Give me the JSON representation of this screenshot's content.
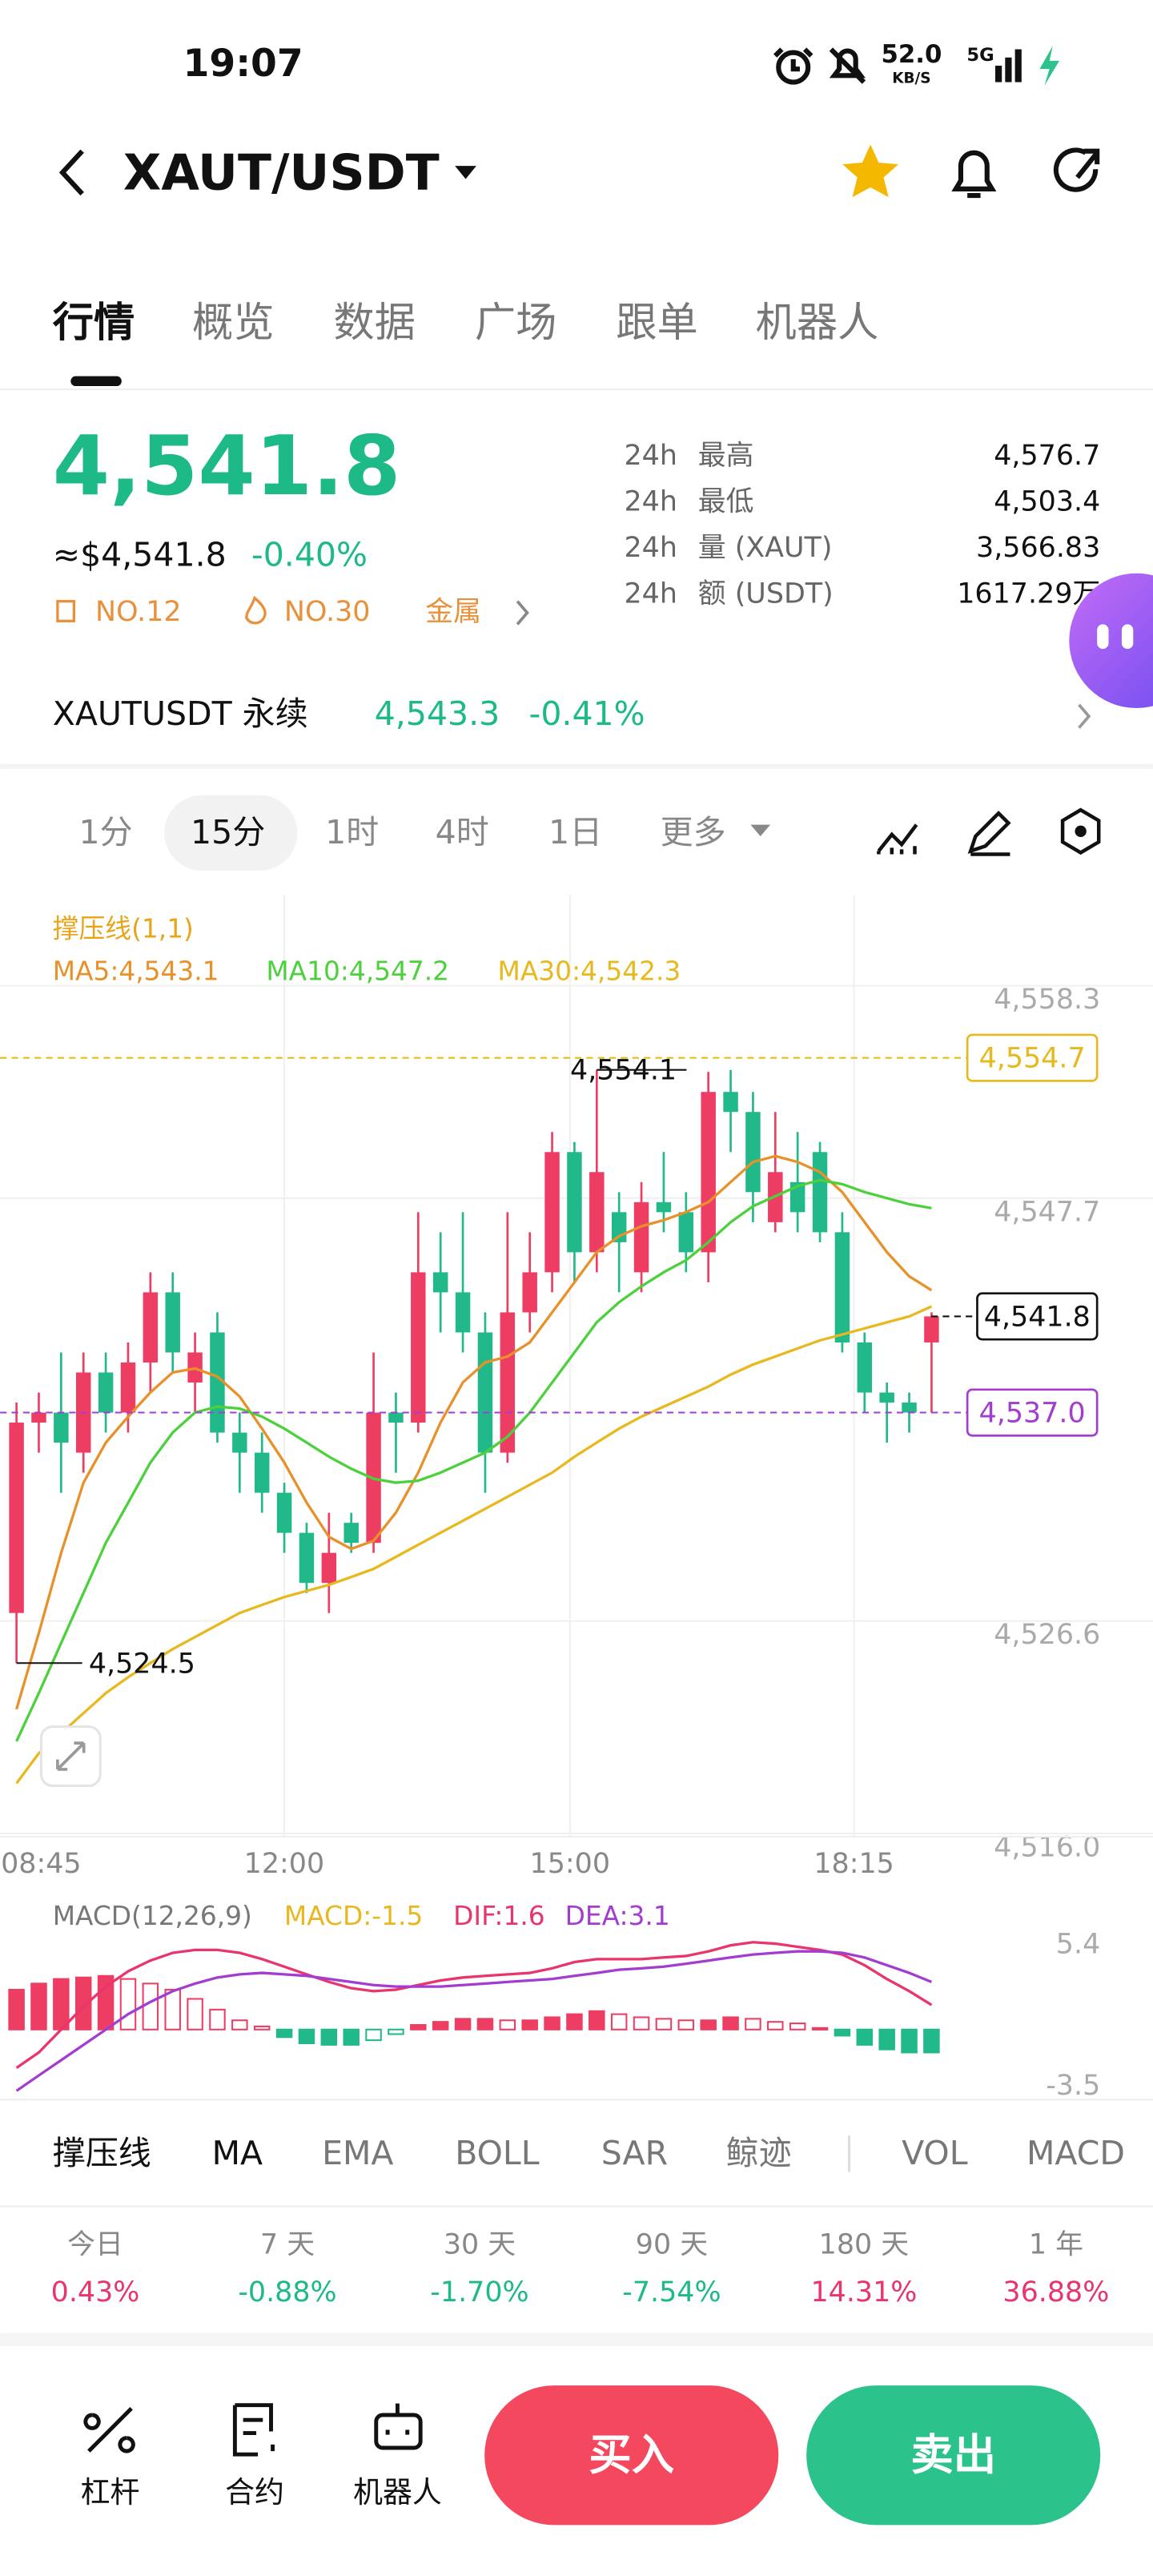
{
  "status": {
    "time": "19:07",
    "net": "52.0",
    "net_unit": "KB/S",
    "network": "5G"
  },
  "header": {
    "pair": "XAUT/USDT"
  },
  "tabs": [
    "行情",
    "概览",
    "数据",
    "广场",
    "跟单",
    "机器人"
  ],
  "price": {
    "last": "4,541.8",
    "usd": "≈$4,541.8",
    "change": "-0.40%",
    "rank1": "NO.12",
    "rank2": "NO.30",
    "tag": "金属"
  },
  "stats": [
    [
      "24h",
      "最高",
      "4,576.7"
    ],
    [
      "24h",
      "最低",
      "4,503.4"
    ],
    [
      "24h",
      "量 (XAUT)",
      "3,566.83"
    ],
    [
      "24h",
      "额 (USDT)",
      "1617.29万"
    ]
  ],
  "perp": {
    "name": "XAUTUSDT 永续",
    "price": "4,543.3",
    "change": "-0.41%"
  },
  "intervals": [
    "1分",
    "15分",
    "1时",
    "4时",
    "1日",
    "更多"
  ],
  "chart": {
    "indicator": "撑压线(1,1)",
    "ma_labels": [
      "MA5:4,543.1",
      "MA10:4,547.2",
      "MA30:4,542.3"
    ],
    "ylim": [
      4516.0,
      4558.3
    ],
    "yticks": [
      {
        "value": 4558.3,
        "label": "4,558.3"
      },
      {
        "value": 4547.7,
        "label": "4,547.7"
      },
      {
        "value": 4526.6,
        "label": "4,526.6"
      },
      {
        "value": 4516.0,
        "label": "4,516.0"
      }
    ],
    "resistance": {
      "value": 4554.7,
      "label": "4,554.7"
    },
    "current": {
      "value": 4541.8,
      "label": "4,541.8"
    },
    "support": {
      "value": 4537.0,
      "label": "4,537.0"
    },
    "high": {
      "value": 4554.1,
      "label": "4,554.1"
    },
    "low": {
      "value": 4524.5,
      "label": "4,524.5"
    },
    "times": [
      "08:45",
      "12:00",
      "15:00",
      "18:15"
    ],
    "candles": [
      {
        "o": 4527.0,
        "h": 4537.5,
        "l": 4524.5,
        "c": 4536.5
      },
      {
        "o": 4536.5,
        "h": 4538.0,
        "l": 4535.0,
        "c": 4537.0
      },
      {
        "o": 4537.0,
        "h": 4540.0,
        "l": 4533.0,
        "c": 4535.5
      },
      {
        "o": 4535.0,
        "h": 4540.0,
        "l": 4534.0,
        "c": 4539.0
      },
      {
        "o": 4539.0,
        "h": 4540.0,
        "l": 4536.0,
        "c": 4537.0
      },
      {
        "o": 4537.0,
        "h": 4540.5,
        "l": 4536.0,
        "c": 4539.5
      },
      {
        "o": 4539.5,
        "h": 4544.0,
        "l": 4538.0,
        "c": 4543.0
      },
      {
        "o": 4543.0,
        "h": 4544.0,
        "l": 4539.0,
        "c": 4540.0
      },
      {
        "o": 4538.5,
        "h": 4541.0,
        "l": 4537.0,
        "c": 4540.0
      },
      {
        "o": 4541.0,
        "h": 4542.0,
        "l": 4535.5,
        "c": 4536.0
      },
      {
        "o": 4536.0,
        "h": 4537.0,
        "l": 4533.0,
        "c": 4535.0
      },
      {
        "o": 4535.0,
        "h": 4536.0,
        "l": 4532.0,
        "c": 4533.0
      },
      {
        "o": 4533.0,
        "h": 4533.5,
        "l": 4530.0,
        "c": 4531.0
      },
      {
        "o": 4531.0,
        "h": 4531.5,
        "l": 4528.0,
        "c": 4528.5
      },
      {
        "o": 4528.5,
        "h": 4532.0,
        "l": 4527.0,
        "c": 4530.0
      },
      {
        "o": 4531.5,
        "h": 4532.0,
        "l": 4530.0,
        "c": 4530.5
      },
      {
        "o": 4530.5,
        "h": 4540.0,
        "l": 4530.0,
        "c": 4537.0
      },
      {
        "o": 4537.0,
        "h": 4538.0,
        "l": 4534.0,
        "c": 4536.5
      },
      {
        "o": 4536.5,
        "h": 4547.0,
        "l": 4536.0,
        "c": 4544.0
      },
      {
        "o": 4544.0,
        "h": 4546.0,
        "l": 4541.0,
        "c": 4543.0
      },
      {
        "o": 4543.0,
        "h": 4547.0,
        "l": 4540.0,
        "c": 4541.0
      },
      {
        "o": 4541.0,
        "h": 4542.0,
        "l": 4533.0,
        "c": 4535.0
      },
      {
        "o": 4535.0,
        "h": 4547.0,
        "l": 4534.5,
        "c": 4542.0
      },
      {
        "o": 4542.0,
        "h": 4546.0,
        "l": 4541.0,
        "c": 4544.0
      },
      {
        "o": 4544.0,
        "h": 4551.0,
        "l": 4543.0,
        "c": 4550.0
      },
      {
        "o": 4550.0,
        "h": 4550.5,
        "l": 4543.5,
        "c": 4545.0
      },
      {
        "o": 4545.0,
        "h": 4554.1,
        "l": 4544.0,
        "c": 4549.0
      },
      {
        "o": 4547.0,
        "h": 4548.0,
        "l": 4543.0,
        "c": 4545.5
      },
      {
        "o": 4544.0,
        "h": 4548.5,
        "l": 4543.0,
        "c": 4547.5
      },
      {
        "o": 4547.5,
        "h": 4550.0,
        "l": 4546.0,
        "c": 4547.0
      },
      {
        "o": 4547.0,
        "h": 4548.0,
        "l": 4544.0,
        "c": 4545.0
      },
      {
        "o": 4545.0,
        "h": 4554.0,
        "l": 4543.5,
        "c": 4553.0
      },
      {
        "o": 4553.0,
        "h": 4554.1,
        "l": 4550.0,
        "c": 4552.0
      },
      {
        "o": 4552.0,
        "h": 4553.0,
        "l": 4546.5,
        "c": 4548.0
      },
      {
        "o": 4546.5,
        "h": 4552.0,
        "l": 4546.0,
        "c": 4549.0
      },
      {
        "o": 4548.5,
        "h": 4551.0,
        "l": 4546.0,
        "c": 4547.0
      },
      {
        "o": 4550.0,
        "h": 4550.5,
        "l": 4545.5,
        "c": 4546.0
      },
      {
        "o": 4546.0,
        "h": 4547.0,
        "l": 4540.0,
        "c": 4540.5
      },
      {
        "o": 4540.5,
        "h": 4541.0,
        "l": 4537.0,
        "c": 4538.0
      },
      {
        "o": 4538.0,
        "h": 4538.5,
        "l": 4535.5,
        "c": 4537.5
      },
      {
        "o": 4537.5,
        "h": 4538.0,
        "l": 4536.0,
        "c": 4537.0
      },
      {
        "o": 4540.5,
        "h": 4542.0,
        "l": 4537.0,
        "c": 4541.8
      }
    ],
    "ma_series": [
      {
        "name": "MA5",
        "color": "#e8912a",
        "values": [
          4522.2,
          4526,
          4530,
          4533.5,
          4535.5,
          4536.8,
          4538,
          4539,
          4539.2,
          4538.8,
          4537.8,
          4536.2,
          4534.5,
          4532.5,
          4530.8,
          4530.2,
          4530.6,
          4532,
          4534,
          4536.5,
          4538.5,
          4539.5,
          4539.8,
          4540.5,
          4542,
          4543.5,
          4545,
          4545.8,
          4546.3,
          4546.6,
          4547,
          4547.5,
          4548.5,
          4549.5,
          4549.8,
          4549.5,
          4549,
          4548,
          4546.5,
          4545,
          4543.8,
          4543.1
        ]
      },
      {
        "name": "MA10",
        "color": "#4cd13c",
        "values": [
          4520.6,
          4523,
          4525.5,
          4528,
          4530.5,
          4532.5,
          4534.5,
          4536,
          4537,
          4537.3,
          4537.2,
          4536.8,
          4536.2,
          4535.5,
          4534.8,
          4534.2,
          4533.7,
          4533.5,
          4533.6,
          4534,
          4534.5,
          4535,
          4535.8,
          4537,
          4538.5,
          4540,
          4541.5,
          4542.5,
          4543.3,
          4544,
          4544.6,
          4545.5,
          4546.5,
          4547.3,
          4547.8,
          4548.3,
          4548.6,
          4548.4,
          4548,
          4547.7,
          4547.4,
          4547.2
        ]
      },
      {
        "name": "MA30",
        "color": "#e8b81f",
        "values": [
          4518.5,
          4520,
          4521,
          4522,
          4523,
          4523.8,
          4524.5,
          4525.2,
          4525.8,
          4526.4,
          4527,
          4527.4,
          4527.8,
          4528.1,
          4528.4,
          4528.8,
          4529.2,
          4529.8,
          4530.4,
          4531,
          4531.6,
          4532.2,
          4532.8,
          4533.4,
          4534,
          4534.8,
          4535.5,
          4536.2,
          4536.8,
          4537.3,
          4537.8,
          4538.3,
          4538.9,
          4539.4,
          4539.8,
          4540.2,
          4540.6,
          4540.9,
          4541.2,
          4541.5,
          4541.8,
          4542.3
        ]
      }
    ],
    "up_color": "#ee3d63",
    "down_color": "#21b88a"
  },
  "macd": {
    "title": "MACD(12,26,9)",
    "macd_label": "MACD:-1.5",
    "dif_label": "DIF:1.6",
    "dea_label": "DEA:3.1",
    "ylim": [
      -3.5,
      5.4
    ],
    "yticks": [
      5.4,
      -3.5
    ],
    "hist": [
      2.6,
      3.0,
      3.3,
      3.4,
      3.5,
      3.3,
      3.0,
      2.6,
      2.0,
      1.3,
      0.6,
      0.2,
      -0.5,
      -0.9,
      -1.0,
      -1.0,
      -0.7,
      -0.3,
      0.3,
      0.5,
      0.7,
      0.7,
      0.6,
      0.6,
      0.8,
      1.0,
      1.2,
      1.0,
      0.8,
      0.7,
      0.6,
      0.6,
      0.8,
      0.7,
      0.5,
      0.4,
      0.1,
      -0.4,
      -1.0,
      -1.3,
      -1.5,
      -1.5
    ],
    "dif": {
      "color": "#e8356b",
      "values": [
        -2.5,
        -1.5,
        0,
        1.5,
        2.8,
        3.8,
        4.5,
        5.0,
        5.2,
        5.2,
        5.0,
        4.6,
        4.1,
        3.6,
        3.1,
        2.7,
        2.5,
        2.6,
        2.9,
        3.2,
        3.4,
        3.5,
        3.6,
        3.7,
        4.0,
        4.4,
        4.6,
        4.6,
        4.6,
        4.7,
        4.8,
        5.1,
        5.5,
        5.7,
        5.6,
        5.4,
        5.2,
        4.9,
        4.2,
        3.3,
        2.5,
        1.6
      ]
    },
    "dea": {
      "color": "#a23dd0",
      "values": [
        -4.0,
        -3.0,
        -2.0,
        -1.0,
        0,
        1.0,
        1.8,
        2.5,
        3.0,
        3.4,
        3.6,
        3.7,
        3.6,
        3.5,
        3.3,
        3.1,
        2.9,
        2.8,
        2.8,
        2.8,
        2.9,
        3.0,
        3.1,
        3.2,
        3.3,
        3.5,
        3.7,
        3.9,
        4.0,
        4.1,
        4.3,
        4.5,
        4.7,
        4.9,
        5.0,
        5.1,
        5.1,
        5.0,
        4.7,
        4.2,
        3.7,
        3.1
      ]
    }
  },
  "indicator_tabs": [
    "撑压线",
    "MA",
    "EMA",
    "BOLL",
    "SAR",
    "鲸迹",
    "VOL",
    "MACD"
  ],
  "performance": [
    {
      "label": "今日",
      "value": "0.43%"
    },
    {
      "label": "7 天",
      "value": "-0.88%"
    },
    {
      "label": "30 天",
      "value": "-1.70%"
    },
    {
      "label": "90 天",
      "value": "-7.54%"
    },
    {
      "label": "180 天",
      "value": "14.31%"
    },
    {
      "label": "1 年",
      "value": "36.88%"
    }
  ],
  "bottom_nav": [
    "杠杆",
    "合约",
    "机器人"
  ],
  "buy": "买入",
  "sell": "卖出"
}
